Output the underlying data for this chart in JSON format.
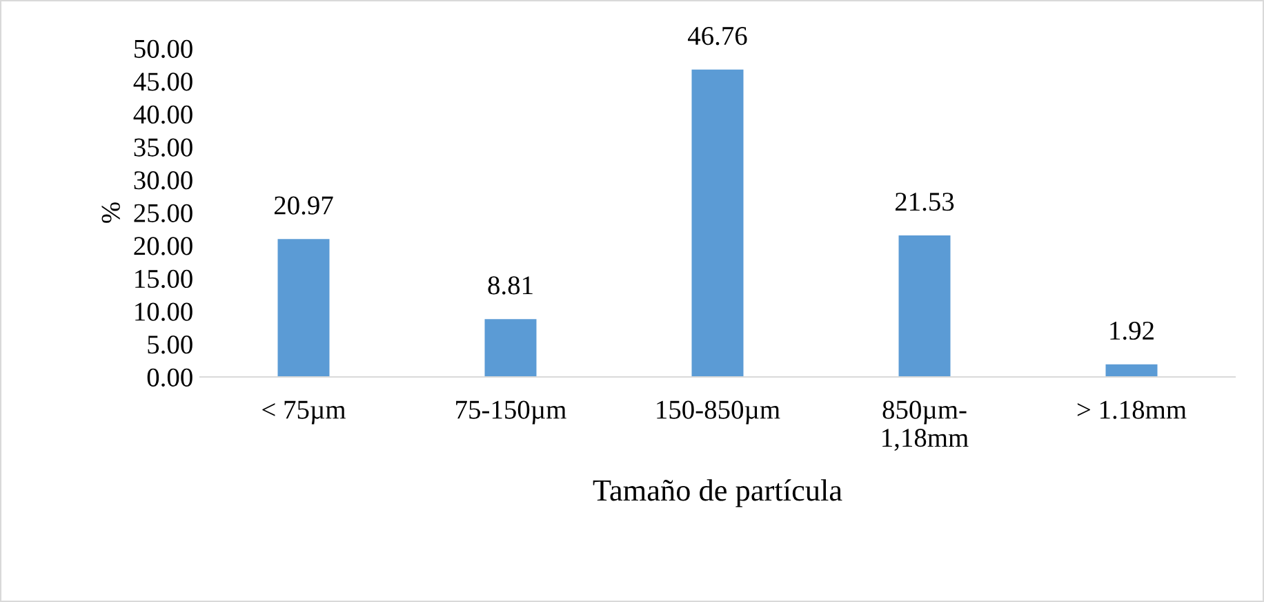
{
  "chart_data": {
    "type": "bar",
    "xlabel": "Tamaño de partícula",
    "ylabel": "%",
    "categories": [
      "< 75µm",
      "75-150µm",
      "150-850µm",
      "850µm-\n1,18mm",
      "> 1.18mm"
    ],
    "values": [
      20.97,
      8.81,
      46.76,
      21.53,
      1.92
    ],
    "color": "#5b9bd5",
    "ylim": [
      0,
      50
    ],
    "yticks": [
      {
        "value": 0,
        "label": "0.00"
      },
      {
        "value": 5,
        "label": "5.00"
      },
      {
        "value": 10,
        "label": "10.00"
      },
      {
        "value": 15,
        "label": "15.00"
      },
      {
        "value": 20,
        "label": "20.00"
      },
      {
        "value": 25,
        "label": "25.00"
      },
      {
        "value": 30,
        "label": "30.00"
      },
      {
        "value": 35,
        "label": "35.00"
      },
      {
        "value": 40,
        "label": "40.00"
      },
      {
        "value": 45,
        "label": "45.00"
      },
      {
        "value": 50,
        "label": "50.00"
      }
    ],
    "grid": false,
    "legend": false,
    "data_labels": true
  }
}
